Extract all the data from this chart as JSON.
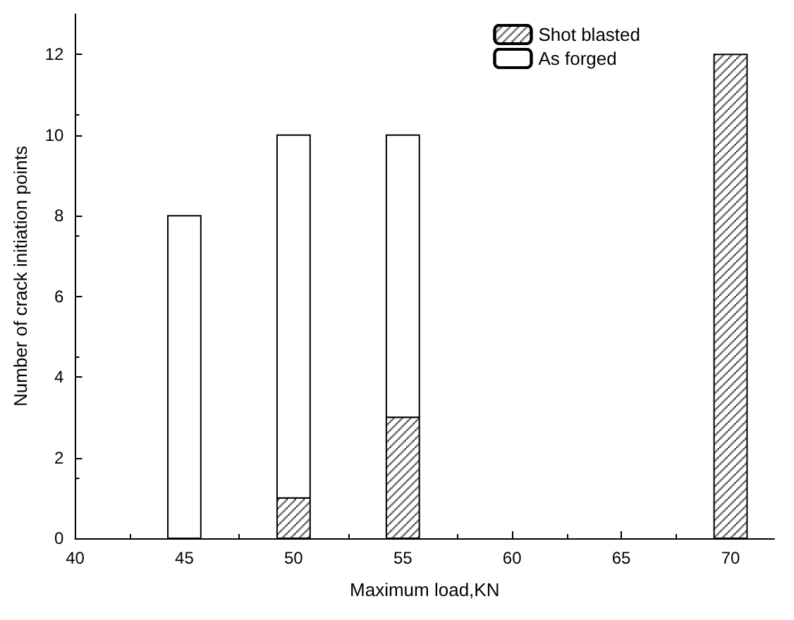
{
  "chart_data": {
    "type": "bar",
    "xlabel": "Maximum load,KN",
    "ylabel": "Number of crack initiation points",
    "x": [
      45,
      50,
      55,
      70
    ],
    "stacked": true,
    "series": [
      {
        "name": "Shot blasted",
        "color": "#000000",
        "values": [
          0,
          1,
          3,
          12
        ]
      },
      {
        "name": "As forged",
        "color": "#ffffff",
        "values": [
          8,
          9,
          7,
          0
        ]
      }
    ],
    "xlim": [
      40,
      72
    ],
    "xticks": [
      40,
      45,
      50,
      55,
      60,
      65,
      70
    ],
    "ylim": [
      0,
      13
    ],
    "yticks": [
      0,
      2,
      4,
      6,
      8,
      10,
      12
    ],
    "grid": false,
    "legend": "top right"
  }
}
